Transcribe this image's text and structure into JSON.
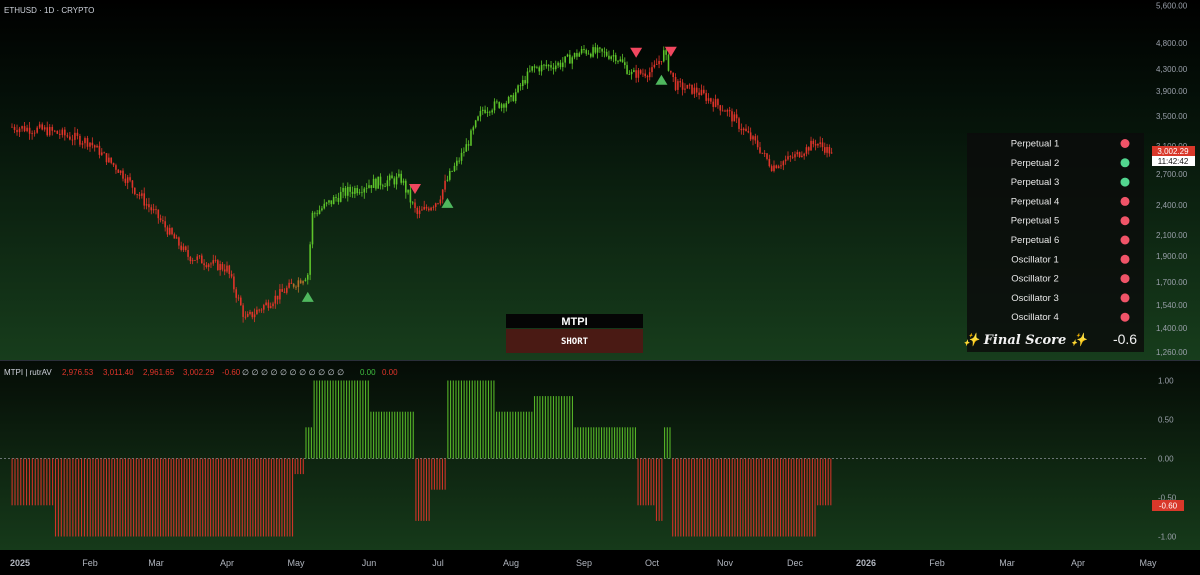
{
  "symbol_header": "ETHUSD · 1D · CRYPTO",
  "price_panel": {
    "axis_labels": [
      "5,600.00",
      "4,800.00",
      "4,300.00",
      "3,900.00",
      "3,500.00",
      "3,100.00",
      "2,700.00",
      "2,400.00",
      "2,100.00",
      "1,900.00",
      "1,700.00",
      "1,540.00",
      "1,400.00",
      "1,260.00"
    ],
    "last_price": "3,002.29",
    "countdown": "11:42:42"
  },
  "mtpi_box": {
    "title": "MTPI",
    "state": "SHORT"
  },
  "indicator_table": {
    "rows": [
      {
        "label": "Perpetual 1",
        "status": "short"
      },
      {
        "label": "Perpetual 2",
        "status": "long"
      },
      {
        "label": "Perpetual 3",
        "status": "long"
      },
      {
        "label": "Perpetual 4",
        "status": "short"
      },
      {
        "label": "Perpetual 5",
        "status": "short"
      },
      {
        "label": "Perpetual 6",
        "status": "short"
      },
      {
        "label": "Oscillator 1",
        "status": "short"
      },
      {
        "label": "Oscillator 2",
        "status": "short"
      },
      {
        "label": "Oscillator 3",
        "status": "short"
      },
      {
        "label": "Oscillator 4",
        "status": "short"
      }
    ],
    "final_label": "✨ Final Score ✨",
    "final_value": "-0.6"
  },
  "oscillator_panel": {
    "name": "MTPI | rutrAV",
    "ohlc": [
      "2,976.53",
      "3,011.40",
      "2,961.65",
      "3,002.29"
    ],
    "value": "-0.60",
    "placeholders": "∅ ∅ ∅ ∅ ∅ ∅ ∅ ∅ ∅ ∅ ∅",
    "extra_values": [
      "0.00",
      "0.00"
    ],
    "axis_labels": [
      "1.00",
      "0.50",
      "0.00",
      "-0.50",
      "-1.00"
    ],
    "current_value": "-0.60"
  },
  "time_axis": [
    "2025",
    "Feb",
    "Mar",
    "Apr",
    "May",
    "Jun",
    "Jul",
    "Aug",
    "Sep",
    "Oct",
    "Nov",
    "Dec",
    "2026",
    "Feb",
    "Mar",
    "Apr",
    "May"
  ],
  "colors": {
    "long": "#5dc42a",
    "short": "#e0342a",
    "neutral": "#b8702a",
    "bg": "#0a1a0a",
    "dot_short": "#f05468",
    "dot_long": "#52d68f"
  },
  "chart_data": [
    {
      "type": "line",
      "title": "ETHUSD · 1D · CRYPTO",
      "y_scale": "log",
      "ylim": [
        1260,
        5600
      ],
      "x": [
        "Jan 1",
        "Jan 15",
        "Feb 1",
        "Feb 15",
        "Mar 1",
        "Mar 15",
        "Apr 1",
        "Apr 9",
        "Apr 22",
        "May 6",
        "May 8",
        "May 20",
        "Jun 1",
        "Jun 15",
        "Jun 22",
        "Jul 1",
        "Jul 10",
        "Jul 20",
        "Aug 1",
        "Aug 10",
        "Aug 22",
        "Sep 1",
        "Sep 15",
        "Sep 22",
        "Oct 1",
        "Oct 6",
        "Oct 11",
        "Oct 20",
        "Nov 1",
        "Nov 15",
        "Nov 21",
        "Dec 1",
        "Dec 10",
        "Dec 17"
      ],
      "series": [
        {
          "values": [
            3350,
            3300,
            3150,
            2700,
            2300,
            1900,
            1800,
            1450,
            1590,
            1760,
            2300,
            2500,
            2600,
            2650,
            2300,
            2450,
            2900,
            3600,
            3750,
            4300,
            4400,
            4650,
            4550,
            4200,
            4250,
            4600,
            4000,
            3900,
            3600,
            3100,
            2800,
            2950,
            3150,
            3002
          ]
        }
      ],
      "signals": [
        {
          "x": "May 6",
          "type": "long"
        },
        {
          "x": "Jun 21",
          "type": "short"
        },
        {
          "x": "Jul 5",
          "type": "long"
        },
        {
          "x": "Sep 24",
          "type": "short"
        },
        {
          "x": "Oct 5",
          "type": "long"
        },
        {
          "x": "Oct 9",
          "type": "short"
        }
      ]
    },
    {
      "type": "bar",
      "ylim": [
        -1.2,
        1.2
      ],
      "segments": [
        {
          "from": "Jan 1",
          "to": "Jan 18",
          "value": -0.6
        },
        {
          "from": "Jan 18",
          "to": "Apr 30",
          "value": -1.0
        },
        {
          "from": "Apr 30",
          "to": "May 5",
          "value": -0.2
        },
        {
          "from": "May 5",
          "to": "May 8",
          "value": 0.4
        },
        {
          "from": "May 8",
          "to": "Jun 1",
          "value": 1.0
        },
        {
          "from": "Jun 1",
          "to": "Jun 21",
          "value": 0.6
        },
        {
          "from": "Jun 21",
          "to": "Jun 28",
          "value": -0.8
        },
        {
          "from": "Jun 28",
          "to": "Jul 5",
          "value": -0.4
        },
        {
          "from": "Jul 5",
          "to": "Jul 25",
          "value": 1.0
        },
        {
          "from": "Jul 25",
          "to": "Aug 10",
          "value": 0.6
        },
        {
          "from": "Aug 10",
          "to": "Aug 28",
          "value": 0.8
        },
        {
          "from": "Aug 28",
          "to": "Sep 24",
          "value": 0.4
        },
        {
          "from": "Sep 24",
          "to": "Oct 2",
          "value": -0.6
        },
        {
          "from": "Oct 2",
          "to": "Oct 6",
          "value": -0.8
        },
        {
          "from": "Oct 6",
          "to": "Oct 9",
          "value": 0.4
        },
        {
          "from": "Oct 9",
          "to": "Dec 10",
          "value": -1.0
        },
        {
          "from": "Dec 10",
          "to": "Dec 17",
          "value": -0.6
        }
      ]
    }
  ]
}
